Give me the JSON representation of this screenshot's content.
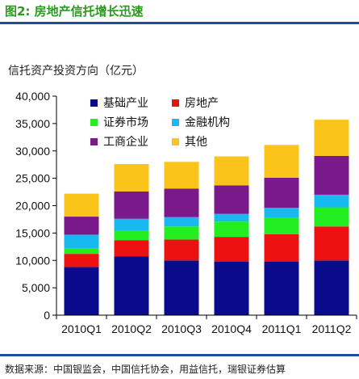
{
  "figure": {
    "title": "图2: 房地产信托增长迅速",
    "title_color": "#2a9a1e",
    "source": "数据来源：中国银监会，中国信托协会，用益信托，瑞银证券估算"
  },
  "chart_data": {
    "type": "bar",
    "stacked": true,
    "title": "信托资产投资方向（亿元）",
    "xlabel": "",
    "ylabel": "",
    "ylim": [
      0,
      40000
    ],
    "yticks": [
      0,
      5000,
      10000,
      15000,
      20000,
      25000,
      30000,
      35000,
      40000
    ],
    "ytick_labels": [
      "0",
      "5,000",
      "10,000",
      "15,000",
      "20,000",
      "25,000",
      "30,000",
      "35,000",
      "40,000"
    ],
    "grid": false,
    "legend_position": "top-left",
    "categories": [
      "2010Q1",
      "2010Q2",
      "2010Q3",
      "2010Q4",
      "2011Q1",
      "2011Q2"
    ],
    "series": [
      {
        "name": "基础产业",
        "color": "#0a0a8c",
        "values": [
          8800,
          10700,
          10000,
          9800,
          9800,
          10000
        ]
      },
      {
        "name": "房地产",
        "color": "#ee1111",
        "values": [
          2400,
          3000,
          3800,
          4500,
          5000,
          6200
        ]
      },
      {
        "name": "证券市场",
        "color": "#22ee22",
        "values": [
          1000,
          1800,
          2400,
          2800,
          3000,
          3500
        ]
      },
      {
        "name": "金融机构",
        "color": "#18b8f0",
        "values": [
          2500,
          2100,
          1700,
          1400,
          1800,
          2300
        ]
      },
      {
        "name": "工商企业",
        "color": "#7a1a8a",
        "values": [
          3300,
          5000,
          5200,
          5200,
          5500,
          7100
        ]
      },
      {
        "name": "其他",
        "color": "#fbc41a",
        "values": [
          4200,
          5000,
          4900,
          5300,
          6000,
          6600
        ]
      }
    ]
  }
}
